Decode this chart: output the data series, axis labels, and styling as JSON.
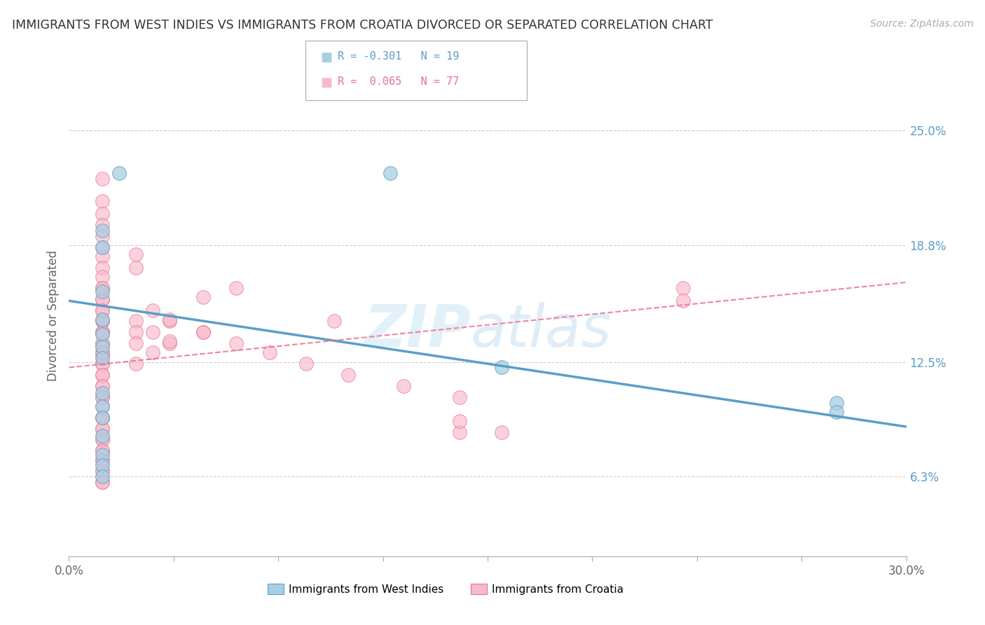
{
  "title": "IMMIGRANTS FROM WEST INDIES VS IMMIGRANTS FROM CROATIA DIVORCED OR SEPARATED CORRELATION CHART",
  "source": "Source: ZipAtlas.com",
  "ylabel": "Divorced or Separated",
  "xlim": [
    0.0,
    0.3
  ],
  "ylim": [
    0.02,
    0.28
  ],
  "yticks": [
    0.063,
    0.125,
    0.188,
    0.25
  ],
  "ytick_labels": [
    "6.3%",
    "12.5%",
    "18.8%",
    "25.0%"
  ],
  "xticks": [
    0.0,
    0.075,
    0.15,
    0.225,
    0.3
  ],
  "xtick_labels": [
    "0.0%",
    "",
    "",
    "",
    "30.0%"
  ],
  "legend_label1": "Immigrants from West Indies",
  "legend_label2": "Immigrants from Croatia",
  "R1": -0.301,
  "N1": 19,
  "R2": 0.065,
  "N2": 77,
  "color_blue": "#a8cee2",
  "color_pink": "#f9b9cc",
  "color_blue_line": "#5b9ec9",
  "color_pink_line": "#e8728a",
  "blue_x": [
    0.018,
    0.115,
    0.012,
    0.012,
    0.012,
    0.012,
    0.012,
    0.012,
    0.012,
    0.012,
    0.012,
    0.012,
    0.012,
    0.012,
    0.012,
    0.012,
    0.275,
    0.275,
    0.155
  ],
  "blue_y": [
    0.227,
    0.227,
    0.196,
    0.187,
    0.163,
    0.148,
    0.14,
    0.133,
    0.127,
    0.108,
    0.101,
    0.095,
    0.085,
    0.075,
    0.069,
    0.063,
    0.103,
    0.098,
    0.122
  ],
  "pink_x": [
    0.012,
    0.012,
    0.012,
    0.012,
    0.012,
    0.012,
    0.012,
    0.012,
    0.012,
    0.012,
    0.012,
    0.012,
    0.012,
    0.012,
    0.012,
    0.012,
    0.012,
    0.012,
    0.012,
    0.012,
    0.012,
    0.012,
    0.012,
    0.012,
    0.012,
    0.012,
    0.012,
    0.012,
    0.012,
    0.012,
    0.012,
    0.012,
    0.012,
    0.012,
    0.012,
    0.012,
    0.012,
    0.012,
    0.012,
    0.012,
    0.012,
    0.012,
    0.012,
    0.012,
    0.012,
    0.012,
    0.012,
    0.012,
    0.024,
    0.024,
    0.024,
    0.024,
    0.03,
    0.03,
    0.03,
    0.036,
    0.036,
    0.048,
    0.06,
    0.072,
    0.085,
    0.1,
    0.12,
    0.14,
    0.024,
    0.048,
    0.024,
    0.22,
    0.22,
    0.14,
    0.14,
    0.048,
    0.06,
    0.036,
    0.095,
    0.036,
    0.155
  ],
  "pink_y": [
    0.224,
    0.212,
    0.205,
    0.199,
    0.193,
    0.187,
    0.182,
    0.176,
    0.171,
    0.165,
    0.159,
    0.153,
    0.147,
    0.141,
    0.135,
    0.13,
    0.124,
    0.118,
    0.112,
    0.106,
    0.101,
    0.095,
    0.089,
    0.083,
    0.077,
    0.072,
    0.066,
    0.06,
    0.147,
    0.141,
    0.135,
    0.129,
    0.124,
    0.159,
    0.153,
    0.165,
    0.141,
    0.13,
    0.118,
    0.112,
    0.106,
    0.095,
    0.083,
    0.077,
    0.066,
    0.06,
    0.072,
    0.089,
    0.147,
    0.141,
    0.135,
    0.124,
    0.153,
    0.141,
    0.13,
    0.147,
    0.135,
    0.141,
    0.135,
    0.13,
    0.124,
    0.118,
    0.112,
    0.106,
    0.176,
    0.16,
    0.183,
    0.165,
    0.158,
    0.087,
    0.093,
    0.141,
    0.165,
    0.136,
    0.147,
    0.148,
    0.087
  ],
  "blue_line_x": [
    0.0,
    0.3
  ],
  "blue_line_y": [
    0.158,
    0.09
  ],
  "pink_line_x": [
    0.0,
    0.3
  ],
  "pink_line_y": [
    0.122,
    0.168
  ]
}
